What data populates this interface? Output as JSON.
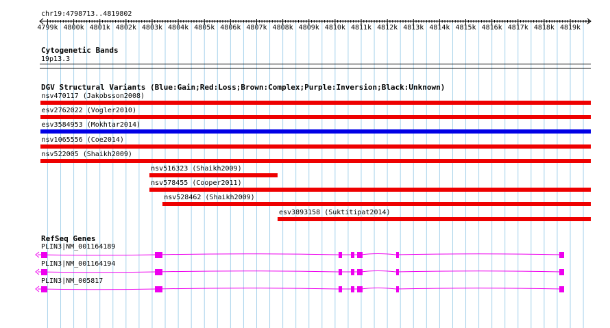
{
  "coords": "chr19:4798713..4819802",
  "ticks": [
    "4799k",
    "4800k",
    "4801k",
    "4802k",
    "4803k",
    "4804k",
    "4805k",
    "4806k",
    "4807k",
    "4808k",
    "4809k",
    "4810k",
    "4811k",
    "4812k",
    "4813k",
    "4814k",
    "4815k",
    "4816k",
    "4817k",
    "4818k",
    "4819k"
  ],
  "cytobands": {
    "title": "Cytogenetic Bands",
    "band": "19p13.3"
  },
  "dgv": {
    "title": "DGV Structural Variants (Blue:Gain;Red:Loss;Brown:Complex;Purple:Inversion;Black:Unknown)",
    "variants": [
      {
        "label": "nsv470117 (Jakobsson2008)",
        "type": "loss",
        "start_kb": 4798.713,
        "end_kb": 4819.802
      },
      {
        "label": "esv2762022 (Vogler2010)",
        "type": "loss",
        "start_kb": 4798.713,
        "end_kb": 4819.802
      },
      {
        "label": "esv3584953 (Mokhtar2014)",
        "type": "gain",
        "start_kb": 4798.713,
        "end_kb": 4819.802
      },
      {
        "label": "nsv1065556 (Coe2014)",
        "type": "loss",
        "start_kb": 4798.713,
        "end_kb": 4819.802
      },
      {
        "label": "nsv522005 (Shaikh2009)",
        "type": "loss",
        "start_kb": 4798.713,
        "end_kb": 4819.802
      },
      {
        "label": "nsv516323 (Shaikh2009)",
        "type": "loss",
        "start_kb": 4802.9,
        "end_kb": 4807.8
      },
      {
        "label": "nsv578455 (Cooper2011)",
        "type": "loss",
        "start_kb": 4802.9,
        "end_kb": 4819.802
      },
      {
        "label": "nsv528462 (Shaikh2009)",
        "type": "loss",
        "start_kb": 4803.4,
        "end_kb": 4819.802
      },
      {
        "label": "esv3893158 (Suktitipat2014)",
        "type": "loss",
        "start_kb": 4807.8,
        "end_kb": 4819.802
      }
    ]
  },
  "colors": {
    "gain": "#0000e6",
    "loss": "#ee0000",
    "gene": "#ee00ee",
    "grid": "#aad4ec"
  },
  "refseq": {
    "title": "RefSeq Genes",
    "transcripts": [
      {
        "label": "PLIN3|NM_001164189"
      },
      {
        "label": "PLIN3|NM_001164194"
      },
      {
        "label": "PLIN3|NM_005817"
      }
    ]
  }
}
